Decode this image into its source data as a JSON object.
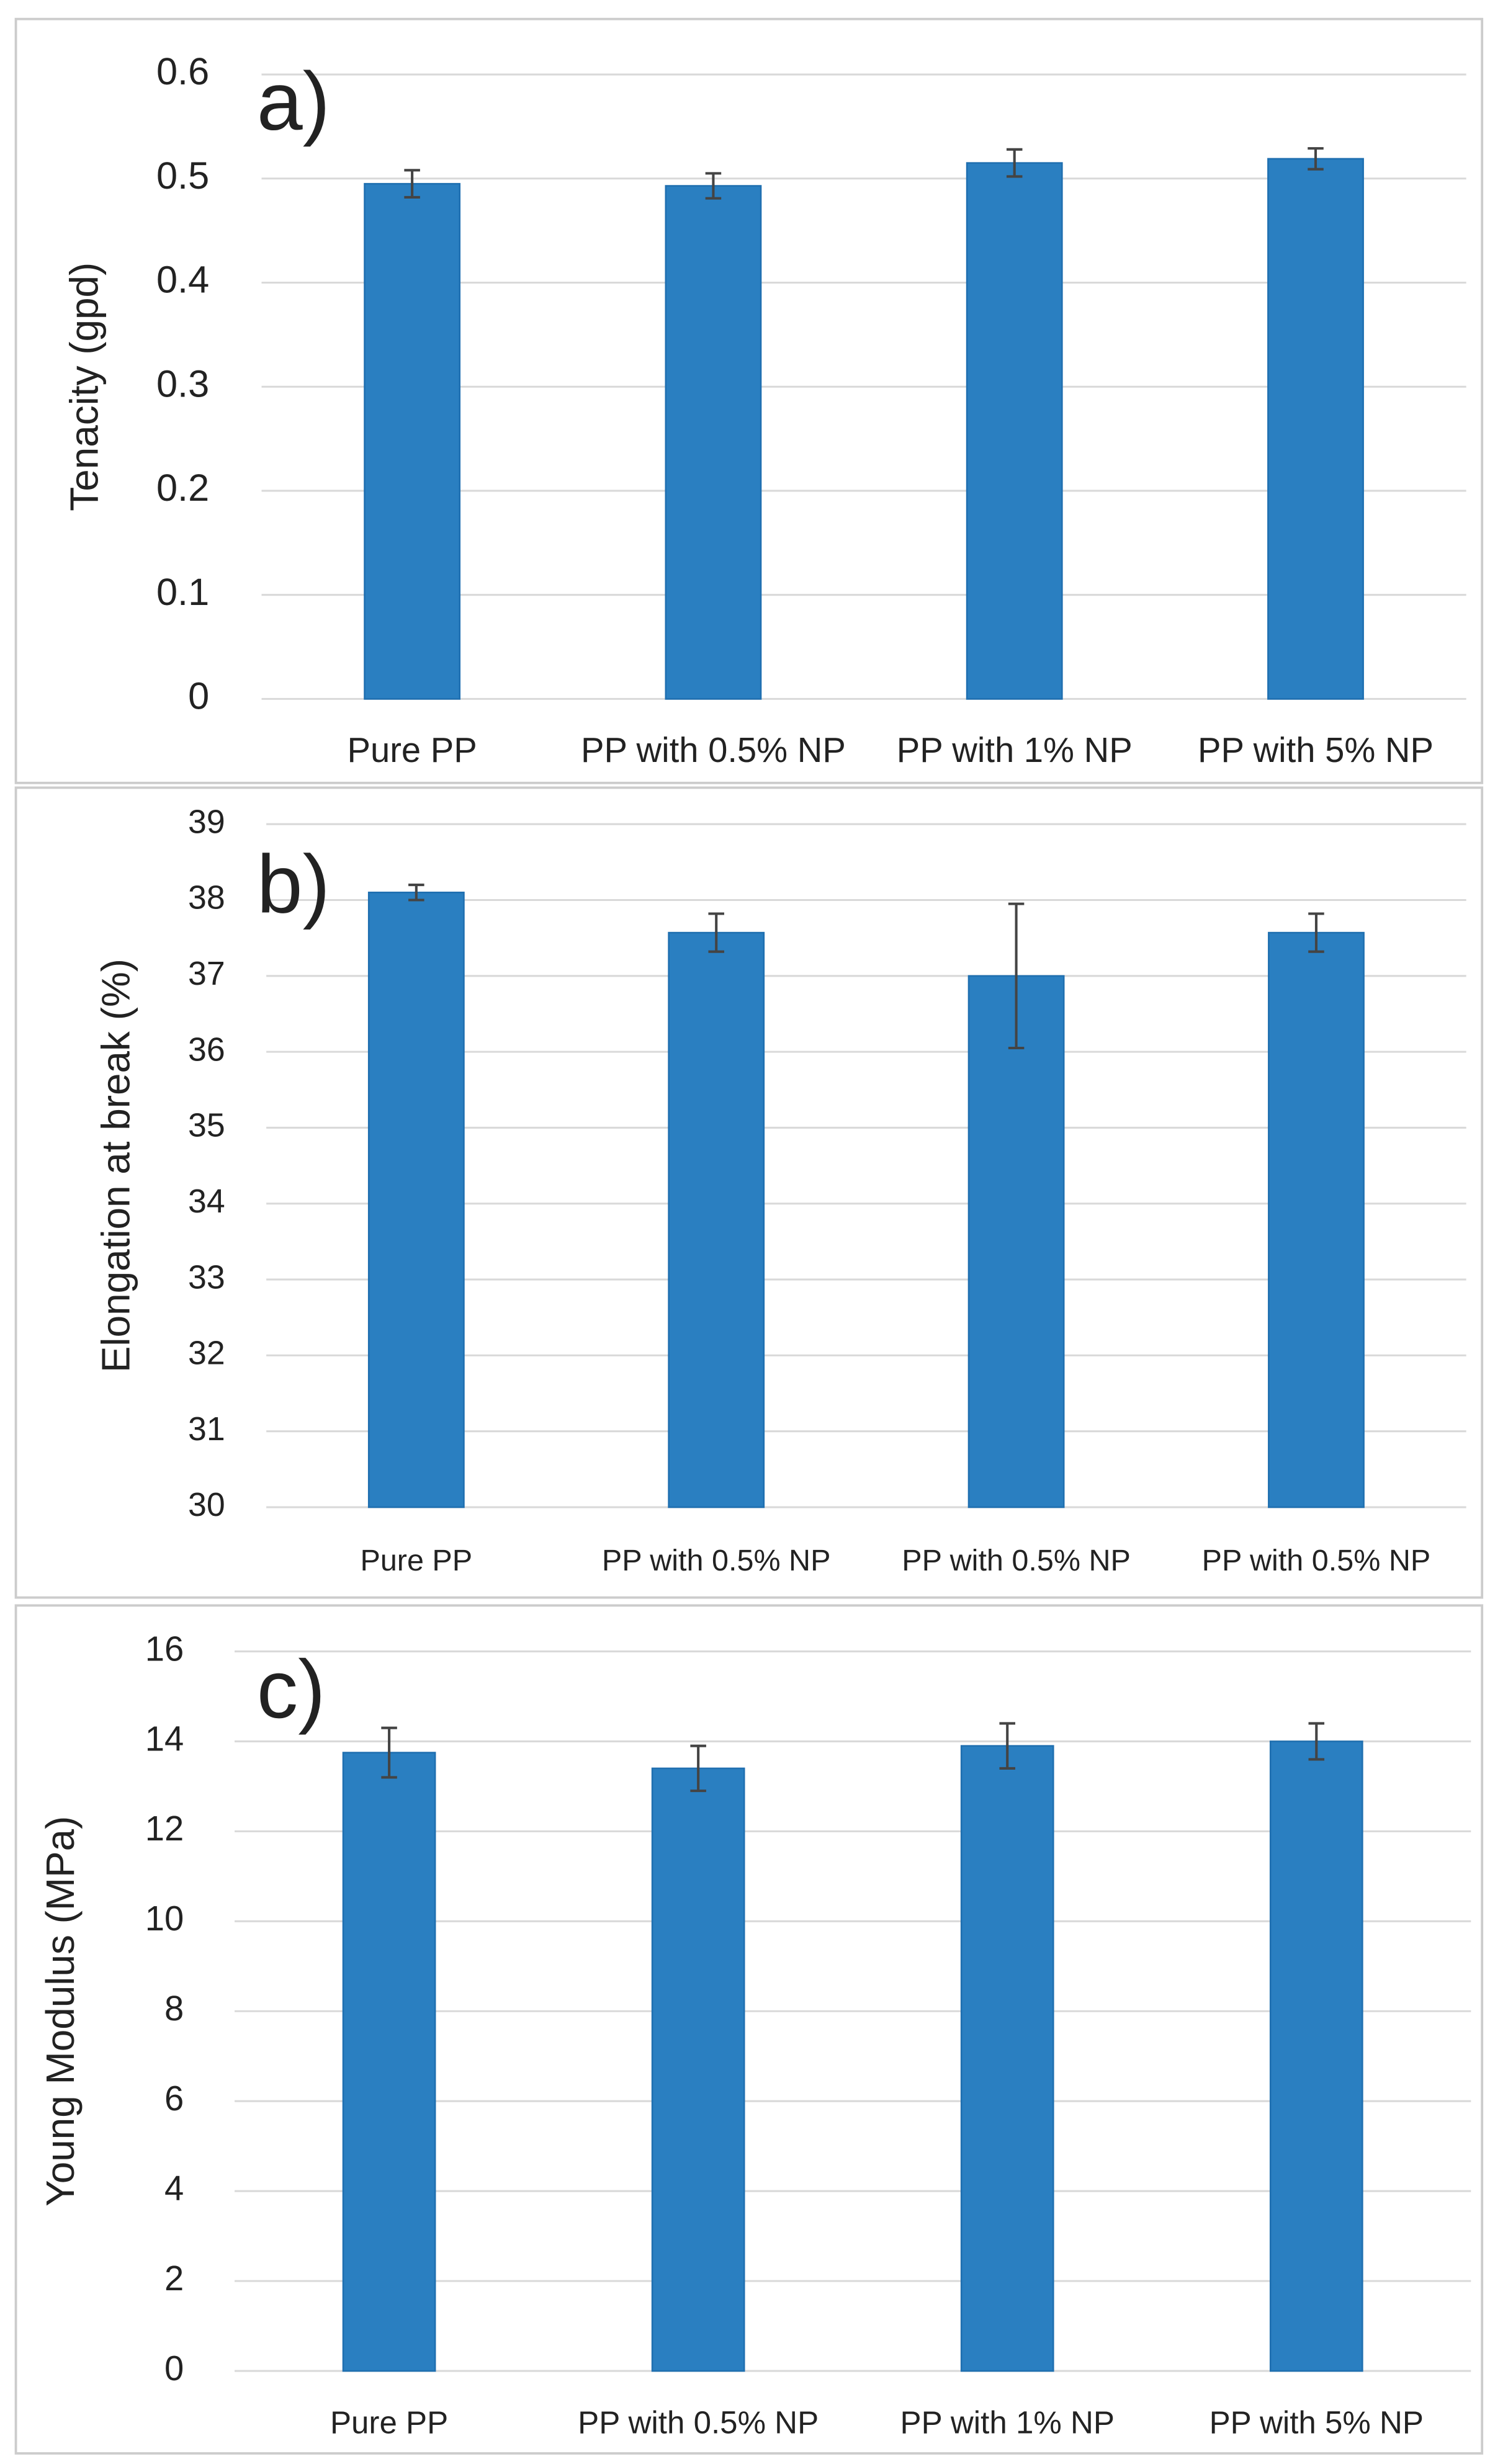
{
  "chart_data": [
    {
      "type": "bar",
      "label": "a)",
      "y_label": "Tenacity (gpd)",
      "categories": [
        "Pure PP",
        "PP with 0.5% NP",
        "PP with 1% NP",
        "PP with 5% NP"
      ],
      "values": [
        0.495,
        0.493,
        0.515,
        0.519
      ],
      "errors": [
        0.013,
        0.012,
        0.013,
        0.01
      ],
      "color": "#2a7fc1",
      "ylim": [
        0,
        0.6
      ],
      "yticks": [
        0,
        0.1,
        0.2,
        0.3,
        0.4,
        0.5,
        0.6
      ],
      "grid": true
    },
    {
      "type": "bar",
      "label": "b)",
      "y_label": "Elongation at break (%)",
      "categories": [
        "Pure PP",
        "PP with 0.5% NP",
        "PP with 0.5% NP",
        "PP with 0.5% NP"
      ],
      "values": [
        38.1,
        37.57,
        37.0,
        37.57
      ],
      "errors": [
        0.1,
        0.25,
        0.95,
        0.25
      ],
      "color": "#2a7fc1",
      "ylim": [
        30,
        39
      ],
      "yticks": [
        30,
        31,
        32,
        33,
        34,
        35,
        36,
        37,
        38,
        39
      ],
      "grid": true
    },
    {
      "type": "bar",
      "label": "c)",
      "y_label": "Young Modulus (MPa)",
      "categories": [
        "Pure PP",
        "PP with 0.5% NP",
        "PP with 1% NP",
        "PP with 5% NP"
      ],
      "values": [
        13.75,
        13.4,
        13.9,
        14.0
      ],
      "errors": [
        0.55,
        0.5,
        0.5,
        0.4
      ],
      "color": "#2a7fc1",
      "ylim": [
        0,
        16
      ],
      "yticks": [
        0,
        2,
        4,
        6,
        8,
        10,
        12,
        14,
        16
      ],
      "grid": true
    }
  ]
}
